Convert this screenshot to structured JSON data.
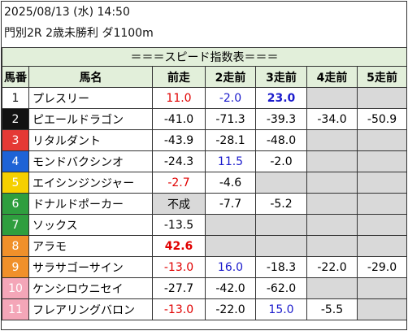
{
  "header": {
    "datetime": "2025/08/13 (水) 14:50",
    "race": "門別2R 2歳未勝利 ダ1100m"
  },
  "table": {
    "title": "＝＝＝スピード指数表＝＝＝",
    "columns": [
      "馬番",
      "馬名",
      "前走",
      "2走前",
      "3走前",
      "4走前",
      "5走前"
    ],
    "rows": [
      {
        "no": "1",
        "name": "プレスリー",
        "cells": [
          {
            "text": "11.0",
            "color": "red"
          },
          {
            "text": "-2.0",
            "color": "blue"
          },
          {
            "text": "23.0",
            "color": "blue",
            "bold": true
          },
          null,
          null
        ]
      },
      {
        "no": "2",
        "name": "ピエールドラゴン",
        "cells": [
          {
            "text": "-41.0"
          },
          {
            "text": "-71.3"
          },
          {
            "text": "-39.3"
          },
          {
            "text": "-34.0"
          },
          {
            "text": "-50.9"
          }
        ]
      },
      {
        "no": "3",
        "name": "リタルダント",
        "cells": [
          {
            "text": "-43.9"
          },
          {
            "text": "-28.1"
          },
          {
            "text": "-48.0"
          },
          null,
          null
        ]
      },
      {
        "no": "4",
        "name": "モンドバクシンオ",
        "cells": [
          {
            "text": "-24.3"
          },
          {
            "text": "11.5",
            "color": "blue"
          },
          {
            "text": "-2.0"
          },
          null,
          null
        ]
      },
      {
        "no": "5",
        "name": "エイシンジンジャー",
        "cells": [
          {
            "text": "-2.7",
            "color": "red"
          },
          {
            "text": "-4.6"
          },
          null,
          null,
          null
        ]
      },
      {
        "no": "6",
        "name": "ドナルドポーカー",
        "cells": [
          {
            "text": "不成",
            "gray": true
          },
          {
            "text": "-7.7"
          },
          {
            "text": "-5.2"
          },
          null,
          null
        ]
      },
      {
        "no": "7",
        "name": "ソックス",
        "cells": [
          {
            "text": "-13.5"
          },
          null,
          null,
          null,
          null
        ]
      },
      {
        "no": "8",
        "name": "アラモ",
        "cells": [
          {
            "text": "42.6",
            "color": "red",
            "bold": true
          },
          null,
          null,
          null,
          null
        ]
      },
      {
        "no": "9",
        "name": "サラサゴーサイン",
        "cells": [
          {
            "text": "-13.0",
            "color": "red"
          },
          {
            "text": "16.0",
            "color": "blue"
          },
          {
            "text": "-18.3"
          },
          {
            "text": "-22.0"
          },
          {
            "text": "-29.0"
          }
        ]
      },
      {
        "no": "10",
        "name": "ケンシロウニセイ",
        "cells": [
          {
            "text": "-27.7"
          },
          {
            "text": "-42.0"
          },
          {
            "text": "-62.0"
          },
          null,
          null
        ]
      },
      {
        "no": "11",
        "name": "フレアリングバロン",
        "cells": [
          {
            "text": "-13.0",
            "color": "red"
          },
          {
            "text": "-22.0"
          },
          {
            "text": "15.0",
            "color": "blue"
          },
          {
            "text": "-5.5"
          },
          null
        ]
      }
    ]
  }
}
